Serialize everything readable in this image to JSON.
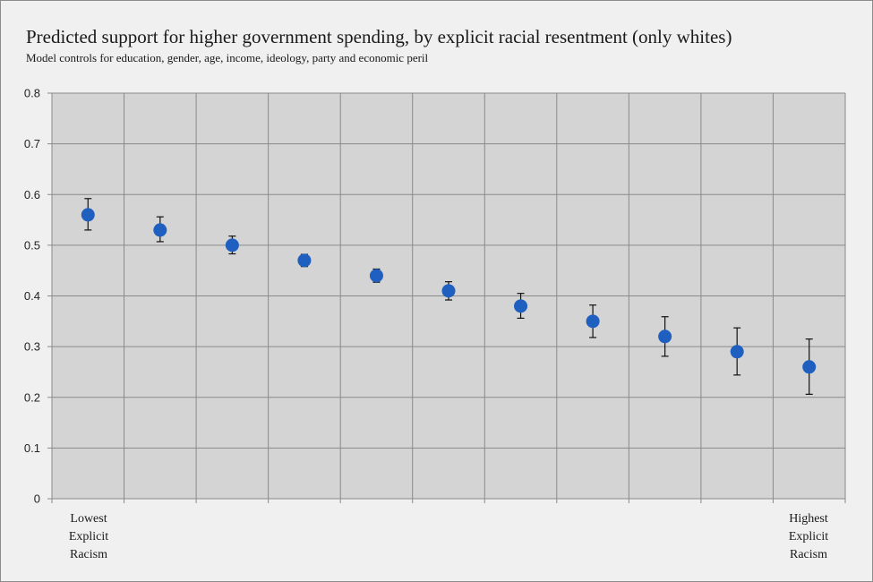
{
  "title": "Predicted support for higher government spending, by explicit racial resentment (only whites)",
  "subtitle": "Model controls for education, gender, age, income, ideology, party and economic peril",
  "colors": {
    "marker": "#1f5fbf",
    "plot_bg": "#d4d4d4",
    "grid": "#8a8a8a",
    "page_bg": "#f0f0f0"
  },
  "chart_data": {
    "type": "scatter",
    "title": "Predicted support for higher government spending, by explicit racial resentment (only whites)",
    "subtitle": "Model controls for education, gender, age, income, ideology, party and economic peril",
    "x_left_label": [
      "Lowest",
      "Explicit",
      "Racism"
    ],
    "x_right_label": [
      "Highest",
      "Explicit",
      "Racism"
    ],
    "ylim": [
      0,
      0.8
    ],
    "yticks": [
      "0",
      "0.1",
      "0.2",
      "0.3",
      "0.4",
      "0.5",
      "0.6",
      "0.7",
      "0.8"
    ],
    "ytick_values": [
      0,
      0.1,
      0.2,
      0.3,
      0.4,
      0.5,
      0.6,
      0.7,
      0.8
    ],
    "grid": true,
    "points": [
      {
        "x": 1,
        "y": 0.56,
        "lower": 0.53,
        "upper": 0.592
      },
      {
        "x": 2,
        "y": 0.53,
        "lower": 0.507,
        "upper": 0.556
      },
      {
        "x": 3,
        "y": 0.5,
        "lower": 0.483,
        "upper": 0.518
      },
      {
        "x": 4,
        "y": 0.47,
        "lower": 0.458,
        "upper": 0.482
      },
      {
        "x": 5,
        "y": 0.44,
        "lower": 0.427,
        "upper": 0.453
      },
      {
        "x": 6,
        "y": 0.41,
        "lower": 0.392,
        "upper": 0.428
      },
      {
        "x": 7,
        "y": 0.38,
        "lower": 0.356,
        "upper": 0.405
      },
      {
        "x": 8,
        "y": 0.35,
        "lower": 0.318,
        "upper": 0.382
      },
      {
        "x": 9,
        "y": 0.32,
        "lower": 0.281,
        "upper": 0.359
      },
      {
        "x": 10,
        "y": 0.29,
        "lower": 0.244,
        "upper": 0.337
      },
      {
        "x": 11,
        "y": 0.26,
        "lower": 0.206,
        "upper": 0.315
      }
    ]
  }
}
